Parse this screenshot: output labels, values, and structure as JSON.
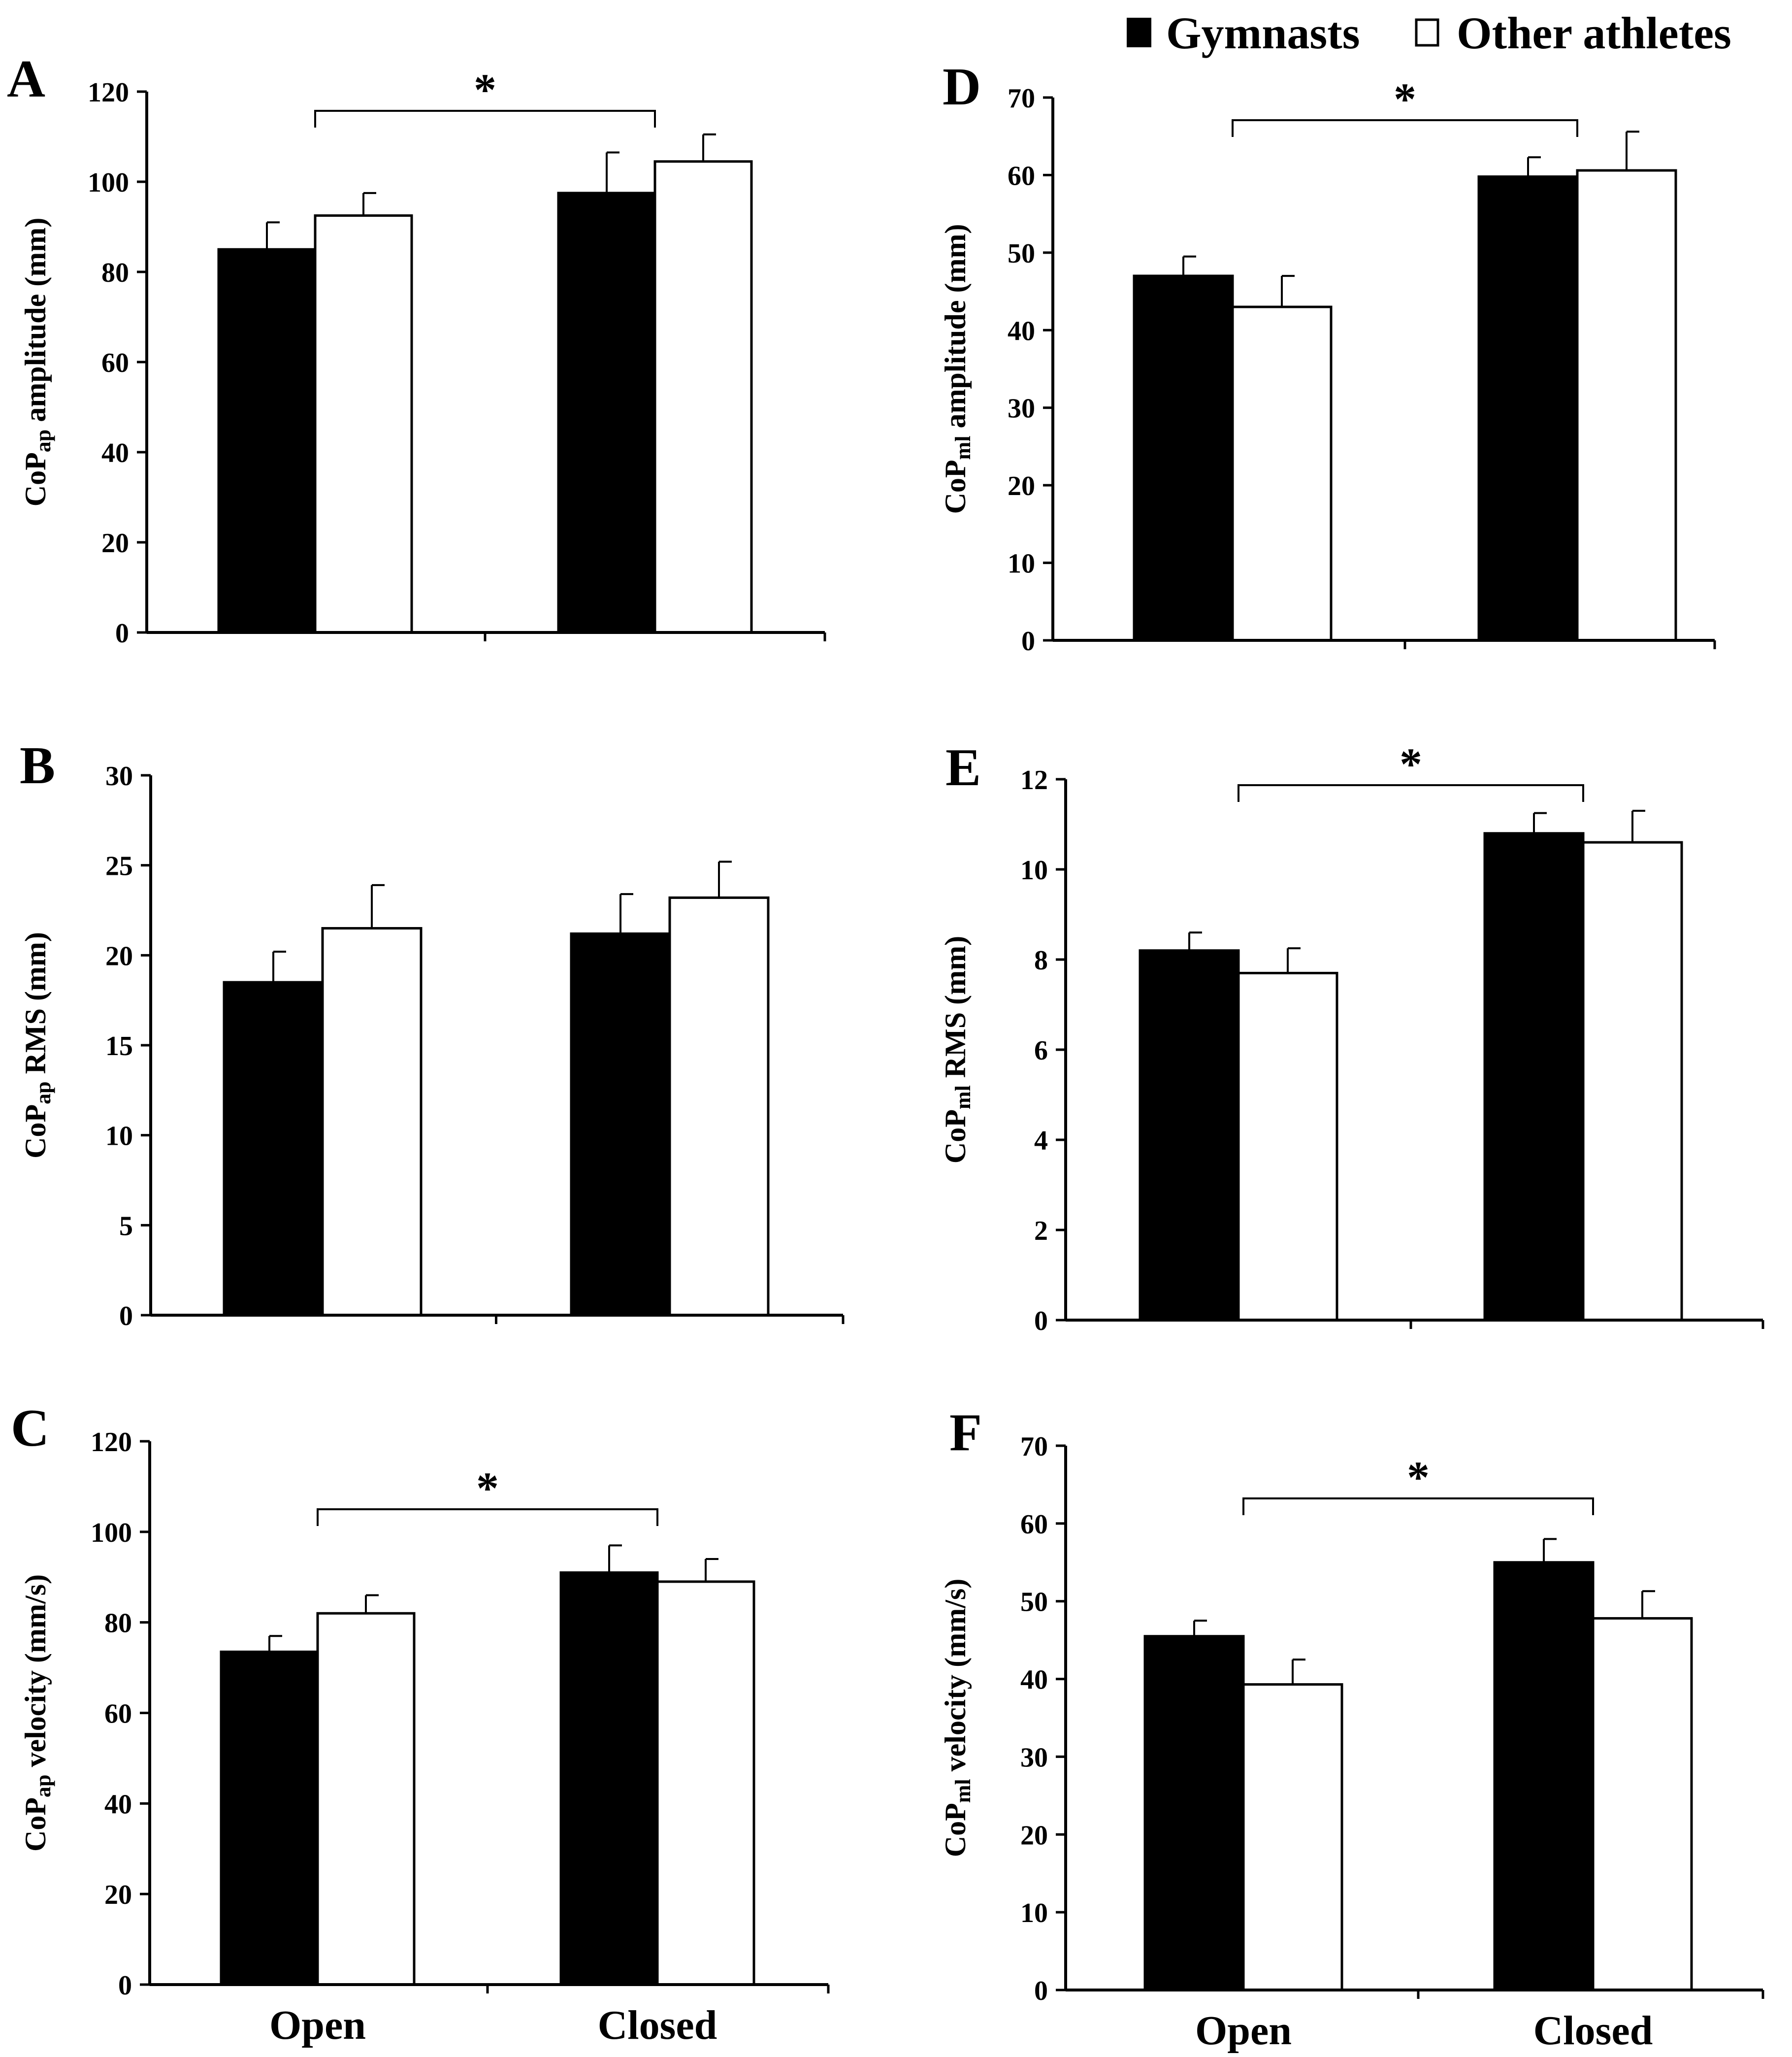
{
  "legend": {
    "entries": [
      {
        "label": "Gymnasts",
        "color": "#000000"
      },
      {
        "label": "Other athletes",
        "color": "#ffffff"
      }
    ]
  },
  "chart_data": [
    {
      "type": "bar",
      "panel": "A",
      "categories": [
        "Open",
        "Closed"
      ],
      "ylabel": {
        "main": "CoP",
        "sub": "ap",
        "rest": " amplitude (mm)"
      },
      "ylim": [
        0,
        120
      ],
      "yticks": [
        0,
        20,
        40,
        60,
        80,
        100,
        120
      ],
      "series": [
        {
          "name": "Gymnasts",
          "color": "#000000",
          "values": [
            85,
            97.5
          ],
          "errors": [
            6,
            9
          ]
        },
        {
          "name": "Other athletes",
          "color": "#ffffff",
          "values": [
            92.5,
            104.5
          ],
          "errors": [
            5,
            6
          ]
        }
      ],
      "significance": {
        "label": "*",
        "from": "Open",
        "to": "Closed"
      },
      "show_category_labels": false
    },
    {
      "type": "bar",
      "panel": "B",
      "categories": [
        "Open",
        "Closed"
      ],
      "ylabel": {
        "main": "CoP",
        "sub": "ap",
        "rest": " RMS (mm)"
      },
      "ylim": [
        0,
        30
      ],
      "yticks": [
        0,
        5,
        10,
        15,
        20,
        25,
        30
      ],
      "series": [
        {
          "name": "Gymnasts",
          "color": "#000000",
          "values": [
            18.5,
            21.2
          ],
          "errors": [
            1.7,
            2.2
          ]
        },
        {
          "name": "Other athletes",
          "color": "#ffffff",
          "values": [
            21.5,
            23.2
          ],
          "errors": [
            2.4,
            2.0
          ]
        }
      ],
      "significance": null,
      "show_category_labels": false
    },
    {
      "type": "bar",
      "panel": "C",
      "categories": [
        "Open",
        "Closed"
      ],
      "ylabel": {
        "main": "CoP",
        "sub": "ap",
        "rest": " velocity (mm/s)"
      },
      "ylim": [
        0,
        120
      ],
      "yticks": [
        0,
        20,
        40,
        60,
        80,
        100,
        120
      ],
      "series": [
        {
          "name": "Gymnasts",
          "color": "#000000",
          "values": [
            73.5,
            91
          ],
          "errors": [
            3.5,
            6
          ]
        },
        {
          "name": "Other athletes",
          "color": "#ffffff",
          "values": [
            82,
            89
          ],
          "errors": [
            4,
            5
          ]
        }
      ],
      "significance": {
        "label": "*",
        "from": "Open",
        "to": "Closed"
      },
      "show_category_labels": true
    },
    {
      "type": "bar",
      "panel": "D",
      "categories": [
        "Open",
        "Closed"
      ],
      "ylabel": {
        "main": "CoP",
        "sub": "ml",
        "rest": " amplitude (mm)"
      },
      "ylim": [
        0,
        70
      ],
      "yticks": [
        0,
        10,
        20,
        30,
        40,
        50,
        60,
        70
      ],
      "series": [
        {
          "name": "Gymnasts",
          "color": "#000000",
          "values": [
            47,
            59.8
          ],
          "errors": [
            2.5,
            2.5
          ]
        },
        {
          "name": "Other athletes",
          "color": "#ffffff",
          "values": [
            43,
            60.6
          ],
          "errors": [
            4,
            5
          ]
        }
      ],
      "significance": {
        "label": "*",
        "from": "Open",
        "to": "Closed"
      },
      "show_category_labels": false
    },
    {
      "type": "bar",
      "panel": "E",
      "categories": [
        "Open",
        "Closed"
      ],
      "ylabel": {
        "main": "CoP",
        "sub": "ml",
        "rest": " RMS (mm)"
      },
      "ylim": [
        0,
        12
      ],
      "yticks": [
        0,
        2,
        4,
        6,
        8,
        10,
        12
      ],
      "series": [
        {
          "name": "Gymnasts",
          "color": "#000000",
          "values": [
            8.2,
            10.8
          ],
          "errors": [
            0.4,
            0.45
          ]
        },
        {
          "name": "Other athletes",
          "color": "#ffffff",
          "values": [
            7.7,
            10.6
          ],
          "errors": [
            0.55,
            0.7
          ]
        }
      ],
      "significance": {
        "label": "*",
        "from": "Open",
        "to": "Closed"
      },
      "show_category_labels": false
    },
    {
      "type": "bar",
      "panel": "F",
      "categories": [
        "Open",
        "Closed"
      ],
      "ylabel": {
        "main": "CoP",
        "sub": "ml",
        "rest": " velocity (mm/s)"
      },
      "ylim": [
        0,
        70
      ],
      "yticks": [
        0,
        10,
        20,
        30,
        40,
        50,
        60,
        70
      ],
      "series": [
        {
          "name": "Gymnasts",
          "color": "#000000",
          "values": [
            45.5,
            55
          ],
          "errors": [
            2,
            3
          ]
        },
        {
          "name": "Other athletes",
          "color": "#ffffff",
          "values": [
            39.3,
            47.8
          ],
          "errors": [
            3.2,
            3.5
          ]
        }
      ],
      "significance": {
        "label": "*",
        "from": "Open",
        "to": "Closed"
      },
      "show_category_labels": true
    }
  ]
}
